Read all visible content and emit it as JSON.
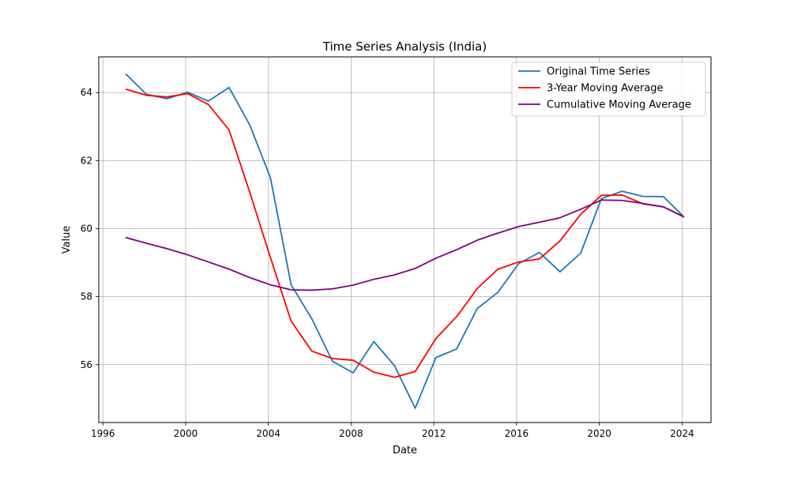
{
  "chart_data": {
    "type": "line",
    "title": "Time Series Analysis (India)",
    "xlabel": "Date",
    "ylabel": "Value",
    "xlim": [
      1995.8,
      2025.4
    ],
    "ylim": [
      54.3,
      65.05
    ],
    "x_ticks": [
      1996,
      2000,
      2004,
      2008,
      2012,
      2016,
      2020,
      2024
    ],
    "y_ticks": [
      56,
      58,
      60,
      62,
      64
    ],
    "grid": true,
    "legend_position": "upper-right",
    "x": [
      1997.1,
      1998.1,
      1999.1,
      2000.1,
      2001.1,
      2002.1,
      2003.1,
      2004.1,
      2005.1,
      2006.1,
      2007.1,
      2008.1,
      2009.1,
      2010.1,
      2011.1,
      2012.1,
      2013.1,
      2014.1,
      2015.1,
      2016.1,
      2017.1,
      2018.1,
      2019.1,
      2020.1,
      2021.1,
      2022.1,
      2023.1,
      2024.1
    ],
    "series": [
      {
        "name": "Original Time Series",
        "color": "#1f77b4",
        "values": [
          64.55,
          63.95,
          63.82,
          64.01,
          63.75,
          64.15,
          63.05,
          61.5,
          58.35,
          57.35,
          56.1,
          55.76,
          56.68,
          55.97,
          54.72,
          56.21,
          56.46,
          57.65,
          58.13,
          58.97,
          59.3,
          58.73,
          59.28,
          60.88,
          61.1,
          60.95,
          60.94,
          60.34
        ]
      },
      {
        "name": "3-Year Moving Average",
        "color": "#ff0000",
        "values": [
          64.1,
          63.92,
          63.87,
          63.97,
          63.65,
          62.9,
          61.07,
          59.15,
          57.28,
          56.4,
          56.18,
          56.13,
          55.78,
          55.63,
          55.8,
          56.77,
          57.41,
          58.24,
          58.81,
          59.02,
          59.11,
          59.64,
          60.42,
          60.98,
          60.99,
          60.73,
          60.64,
          60.34
        ]
      },
      {
        "name": "Cumulative Moving Average",
        "color": "#800080",
        "values": [
          59.74,
          59.57,
          59.41,
          59.23,
          59.02,
          58.81,
          58.56,
          58.35,
          58.2,
          58.19,
          58.23,
          58.34,
          58.51,
          58.64,
          58.83,
          59.13,
          59.38,
          59.66,
          59.87,
          60.06,
          60.19,
          60.32,
          60.57,
          60.84,
          60.83,
          60.74,
          60.64,
          60.34
        ]
      }
    ]
  }
}
